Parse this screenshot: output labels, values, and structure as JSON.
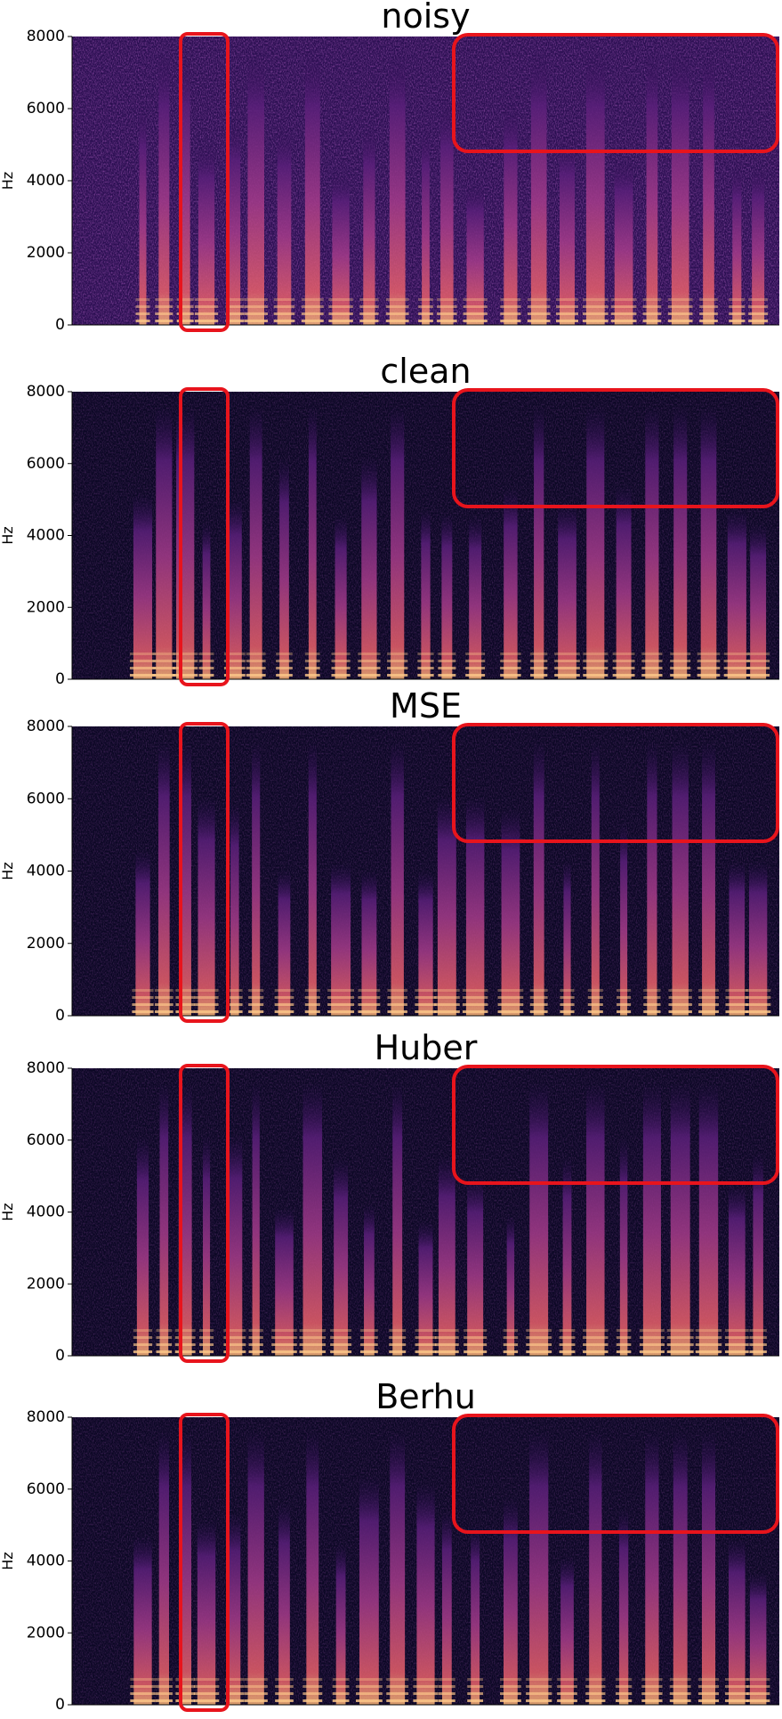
{
  "chart_data": [
    {
      "type": "spectrogram",
      "title": "noisy",
      "ylabel": "Hz",
      "ylim": [
        0,
        8000
      ],
      "yticks": [
        0,
        2000,
        4000,
        6000,
        8000
      ]
    },
    {
      "type": "spectrogram",
      "title": "clean",
      "ylabel": "Hz",
      "ylim": [
        0,
        8000
      ],
      "yticks": [
        0,
        2000,
        4000,
        6000,
        8000
      ]
    },
    {
      "type": "spectrogram",
      "title": "MSE",
      "ylabel": "Hz",
      "ylim": [
        0,
        8000
      ],
      "yticks": [
        0,
        2000,
        4000,
        6000,
        8000
      ]
    },
    {
      "type": "spectrogram",
      "title": "Huber",
      "ylabel": "Hz",
      "ylim": [
        0,
        8000
      ],
      "yticks": [
        0,
        2000,
        4000,
        6000,
        8000
      ]
    },
    {
      "type": "spectrogram",
      "title": "Berhu",
      "ylabel": "Hz",
      "ylim": [
        0,
        8000
      ],
      "yticks": [
        0,
        2000,
        4000,
        6000,
        8000
      ]
    }
  ]
}
